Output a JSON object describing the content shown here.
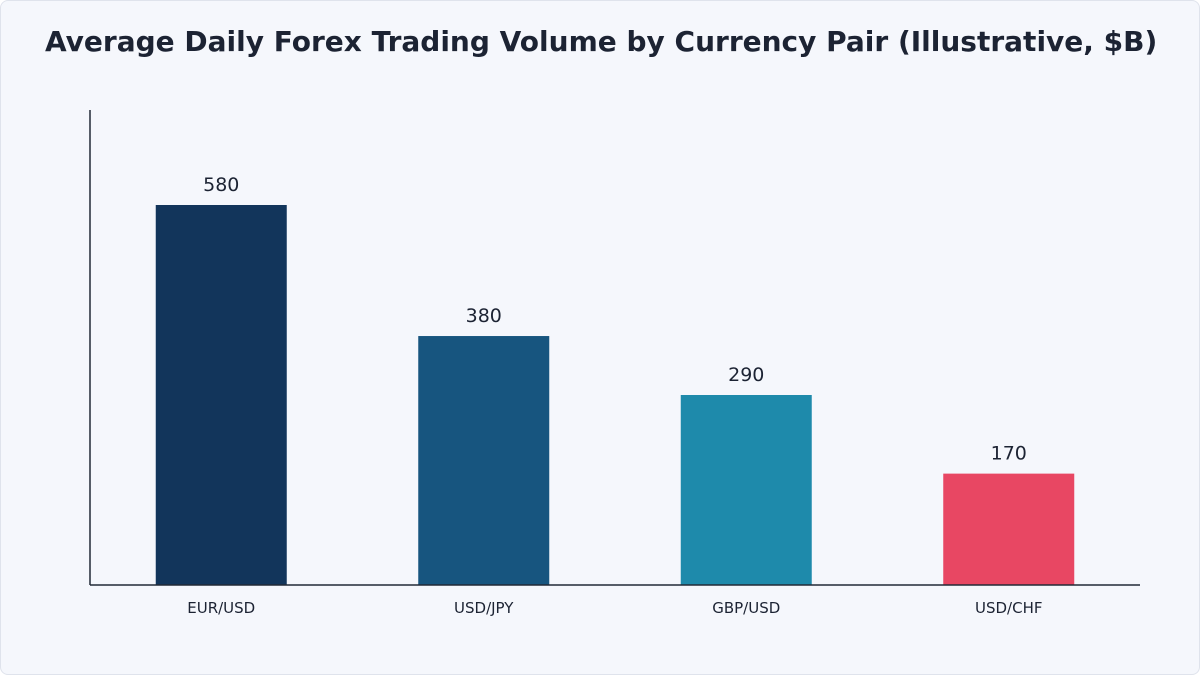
{
  "chart_data": {
    "type": "bar",
    "title": "Average Daily Forex Trading Volume by Currency Pair (Illustrative, $B)",
    "xlabel": "",
    "ylabel": "",
    "categories": [
      "EUR/USD",
      "USD/JPY",
      "GBP/USD",
      "USD/CHF"
    ],
    "values": [
      580,
      380,
      290,
      170
    ],
    "data_labels": [
      "580",
      "380",
      "290",
      "170"
    ],
    "ylim": [
      0,
      725
    ],
    "grid": false,
    "legend": "none",
    "colors": [
      "#12355b",
      "#17557f",
      "#1e8aab",
      "#e84763"
    ]
  }
}
